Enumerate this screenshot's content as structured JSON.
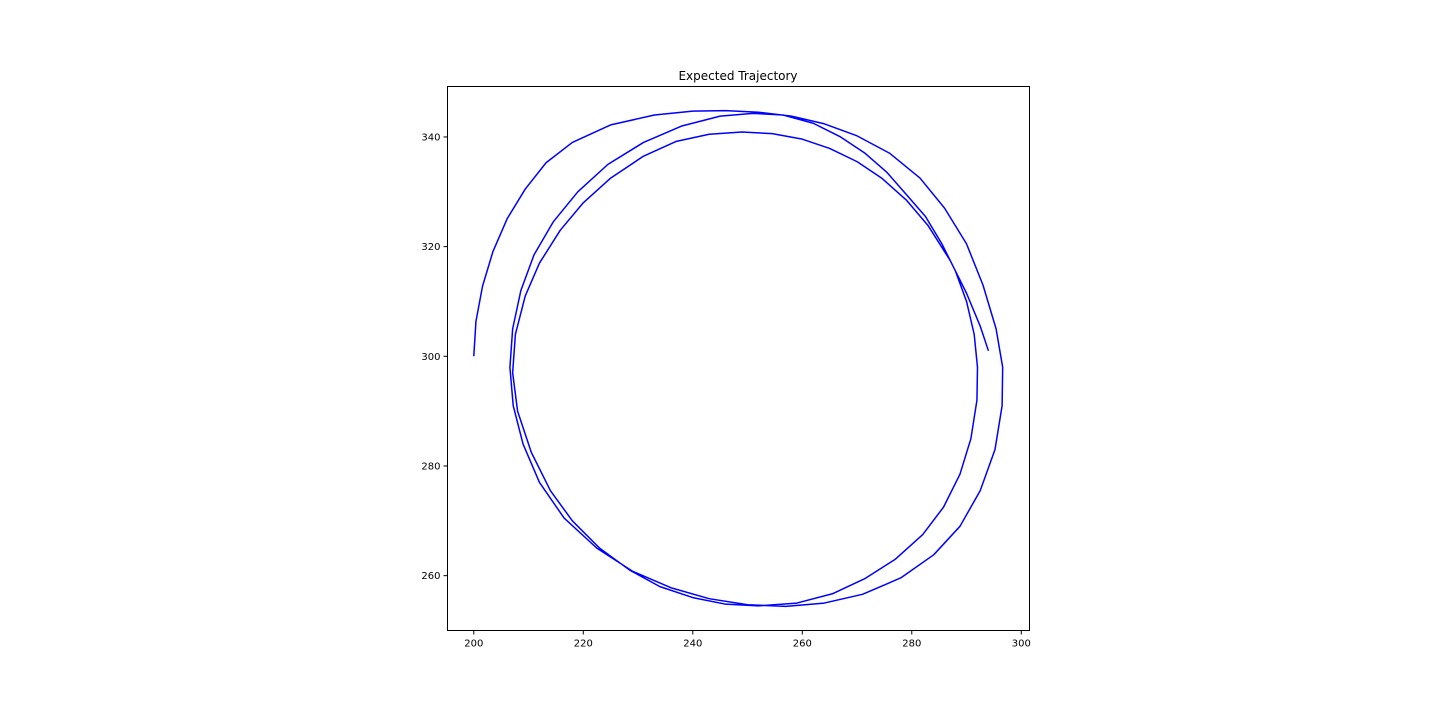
{
  "chart_data": {
    "type": "line",
    "title": "Expected Trajectory",
    "xlabel": "",
    "ylabel": "",
    "xlim": [
      195.2,
      301.5
    ],
    "ylim": [
      250,
      349.2
    ],
    "grid": false,
    "x_ticks": [
      "200",
      "220",
      "240",
      "260",
      "280",
      "300"
    ],
    "y_ticks": [
      "260",
      "280",
      "300",
      "320",
      "340"
    ],
    "series": [
      {
        "color": "#0000ff",
        "points": [
          [
            200.0,
            300.0
          ],
          [
            200.4,
            306.4
          ],
          [
            201.6,
            312.8
          ],
          [
            203.5,
            319.1
          ],
          [
            206.1,
            325.1
          ],
          [
            209.4,
            330.5
          ],
          [
            213.2,
            335.3
          ],
          [
            218.0,
            339.0
          ],
          [
            225.0,
            342.2
          ],
          [
            233.0,
            344.0
          ],
          [
            240.0,
            344.7
          ],
          [
            246.0,
            344.8
          ],
          [
            252.0,
            344.5
          ],
          [
            258.0,
            343.8
          ],
          [
            264.0,
            342.4
          ],
          [
            270.0,
            340.2
          ],
          [
            276.0,
            337.0
          ],
          [
            281.5,
            332.5
          ],
          [
            286.0,
            327.0
          ],
          [
            290.0,
            320.5
          ],
          [
            293.0,
            313.0
          ],
          [
            295.4,
            305.0
          ],
          [
            296.6,
            298.0
          ],
          [
            296.5,
            291.0
          ],
          [
            295.2,
            283.0
          ],
          [
            292.5,
            275.5
          ],
          [
            288.8,
            269.0
          ],
          [
            284.0,
            263.8
          ],
          [
            278.0,
            259.6
          ],
          [
            271.0,
            256.6
          ],
          [
            264.0,
            255.0
          ],
          [
            257.0,
            254.4
          ],
          [
            250.0,
            254.7
          ],
          [
            243.0,
            255.8
          ],
          [
            236.0,
            257.8
          ],
          [
            229.0,
            260.8
          ],
          [
            222.5,
            265.0
          ],
          [
            216.5,
            270.5
          ],
          [
            212.0,
            277.0
          ],
          [
            209.0,
            284.0
          ],
          [
            207.2,
            291.0
          ],
          [
            206.6,
            298.0
          ],
          [
            207.1,
            305.0
          ],
          [
            208.6,
            312.0
          ],
          [
            211.0,
            318.5
          ],
          [
            214.5,
            324.5
          ],
          [
            219.0,
            330.0
          ],
          [
            224.5,
            335.0
          ],
          [
            231.0,
            339.0
          ],
          [
            238.0,
            342.0
          ],
          [
            245.0,
            343.8
          ],
          [
            251.0,
            344.3
          ],
          [
            256.5,
            344.0
          ],
          [
            262.0,
            342.5
          ],
          [
            267.0,
            340.0
          ],
          [
            271.5,
            337.0
          ],
          [
            275.5,
            333.5
          ],
          [
            279.0,
            329.5
          ],
          [
            282.5,
            325.5
          ],
          [
            285.5,
            320.5
          ],
          [
            288.0,
            315.5
          ],
          [
            290.0,
            310.0
          ],
          [
            291.4,
            304.0
          ],
          [
            292.0,
            298.0
          ],
          [
            291.9,
            292.0
          ],
          [
            290.8,
            285.0
          ],
          [
            288.8,
            278.5
          ],
          [
            285.8,
            272.5
          ],
          [
            282.0,
            267.5
          ],
          [
            277.0,
            263.0
          ],
          [
            271.5,
            259.5
          ],
          [
            265.5,
            256.7
          ],
          [
            259.0,
            255.0
          ],
          [
            252.0,
            254.5
          ],
          [
            246.0,
            254.8
          ],
          [
            240.0,
            256.0
          ],
          [
            234.0,
            258.0
          ],
          [
            228.5,
            261.0
          ],
          [
            223.0,
            265.0
          ],
          [
            218.0,
            270.0
          ],
          [
            214.0,
            275.5
          ],
          [
            210.5,
            282.5
          ],
          [
            208.0,
            290.0
          ],
          [
            207.1,
            297.0
          ],
          [
            207.6,
            304.0
          ],
          [
            209.4,
            311.0
          ],
          [
            212.0,
            317.0
          ],
          [
            215.8,
            323.0
          ],
          [
            220.0,
            328.0
          ],
          [
            225.0,
            332.5
          ],
          [
            231.0,
            336.5
          ],
          [
            237.0,
            339.2
          ],
          [
            243.0,
            340.5
          ],
          [
            249.0,
            340.9
          ],
          [
            254.5,
            340.6
          ],
          [
            260.0,
            339.6
          ],
          [
            265.0,
            337.9
          ],
          [
            270.0,
            335.5
          ],
          [
            274.5,
            332.5
          ],
          [
            279.0,
            328.5
          ],
          [
            283.0,
            323.8
          ],
          [
            287.0,
            317.5
          ],
          [
            290.0,
            311.5
          ],
          [
            292.5,
            305.5
          ],
          [
            294.0,
            301.0
          ]
        ]
      }
    ]
  }
}
